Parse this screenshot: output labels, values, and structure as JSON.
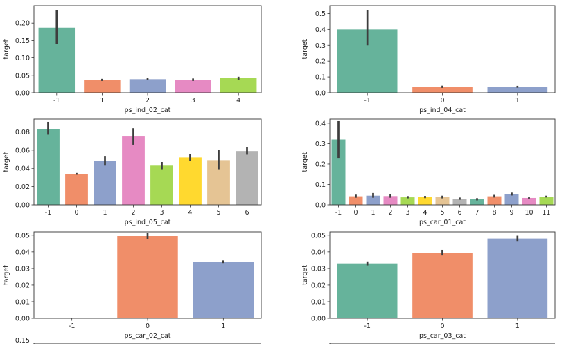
{
  "palette": [
    "#66b39b",
    "#f08e69",
    "#8da0cb",
    "#e68ac3",
    "#a6d954",
    "#ffd92f",
    "#e5c494",
    "#b3b3b3"
  ],
  "chart_data": [
    {
      "type": "bar",
      "categories": [
        "-1",
        "1",
        "2",
        "3",
        "4"
      ],
      "values": [
        0.187,
        0.037,
        0.039,
        0.037,
        0.042
      ],
      "errors": [
        [
          0.14,
          0.238
        ],
        [
          0.034,
          0.04
        ],
        [
          0.036,
          0.042
        ],
        [
          0.034,
          0.041
        ],
        [
          0.037,
          0.046
        ]
      ],
      "xlabel": "ps_ind_02_cat",
      "ylabel": "target",
      "ylim": [
        0,
        0.25
      ],
      "yticks": [
        0.0,
        0.05,
        0.1,
        0.15,
        0.2
      ],
      "ytick_labels": [
        "0.00",
        "0.05",
        "0.10",
        "0.15",
        "0.20"
      ]
    },
    {
      "type": "bar",
      "categories": [
        "-1",
        "0",
        "1"
      ],
      "values": [
        0.4,
        0.038,
        0.037
      ],
      "errors": [
        [
          0.3,
          0.52
        ],
        [
          0.031,
          0.045
        ],
        [
          0.032,
          0.044
        ]
      ],
      "xlabel": "ps_ind_04_cat",
      "ylabel": "target",
      "ylim": [
        0,
        0.55
      ],
      "yticks": [
        0.0,
        0.1,
        0.2,
        0.3,
        0.4,
        0.5
      ],
      "ytick_labels": [
        "0.0",
        "0.1",
        "0.2",
        "0.3",
        "0.4",
        "0.5"
      ]
    },
    {
      "type": "bar",
      "categories": [
        "-1",
        "0",
        "1",
        "2",
        "3",
        "4",
        "5",
        "6"
      ],
      "values": [
        0.083,
        0.034,
        0.048,
        0.075,
        0.043,
        0.052,
        0.049,
        0.059
      ],
      "errors": [
        [
          0.077,
          0.091
        ],
        [
          0.033,
          0.035
        ],
        [
          0.043,
          0.053
        ],
        [
          0.066,
          0.084
        ],
        [
          0.039,
          0.047
        ],
        [
          0.048,
          0.056
        ],
        [
          0.039,
          0.06
        ],
        [
          0.055,
          0.063
        ]
      ],
      "xlabel": "ps_ind_05_cat",
      "ylabel": "target",
      "ylim": [
        0,
        0.094
      ],
      "yticks": [
        0.0,
        0.02,
        0.04,
        0.06,
        0.08
      ],
      "ytick_labels": [
        "0.00",
        "0.02",
        "0.04",
        "0.06",
        "0.08"
      ]
    },
    {
      "type": "bar",
      "categories": [
        "-1",
        "0",
        "1",
        "2",
        "3",
        "4",
        "5",
        "6",
        "7",
        "8",
        "9",
        "10",
        "11"
      ],
      "values": [
        0.32,
        0.042,
        0.045,
        0.043,
        0.037,
        0.038,
        0.038,
        0.03,
        0.027,
        0.042,
        0.053,
        0.034,
        0.04
      ],
      "errors": [
        [
          0.23,
          0.41
        ],
        [
          0.035,
          0.05
        ],
        [
          0.035,
          0.058
        ],
        [
          0.035,
          0.052
        ],
        [
          0.032,
          0.043
        ],
        [
          0.033,
          0.044
        ],
        [
          0.032,
          0.045
        ],
        [
          0.025,
          0.036
        ],
        [
          0.022,
          0.033
        ],
        [
          0.036,
          0.049
        ],
        [
          0.046,
          0.06
        ],
        [
          0.029,
          0.04
        ],
        [
          0.036,
          0.045
        ]
      ],
      "xlabel": "ps_car_01_cat",
      "ylabel": "target",
      "ylim": [
        0,
        0.42
      ],
      "yticks": [
        0.0,
        0.1,
        0.2,
        0.3,
        0.4
      ],
      "ytick_labels": [
        "0.0",
        "0.1",
        "0.2",
        "0.3",
        "0.4"
      ]
    },
    {
      "type": "bar",
      "categories": [
        "-1",
        "0",
        "1"
      ],
      "values": [
        0.0,
        0.0495,
        0.034
      ],
      "errors": [
        null,
        [
          0.0478,
          0.0512
        ],
        [
          0.0332,
          0.0348
        ]
      ],
      "xlabel": "ps_car_02_cat",
      "ylabel": "target",
      "ylim": [
        0,
        0.052
      ],
      "yticks": [
        0.0,
        0.01,
        0.02,
        0.03,
        0.04,
        0.05
      ],
      "ytick_labels": [
        "0.00",
        "0.01",
        "0.02",
        "0.03",
        "0.04",
        "0.05"
      ],
      "color_offset": 0
    },
    {
      "type": "bar",
      "categories": [
        "-1",
        "0",
        "1"
      ],
      "values": [
        0.033,
        0.0395,
        0.048
      ],
      "errors": [
        [
          0.0318,
          0.0342
        ],
        [
          0.0378,
          0.0412
        ],
        [
          0.0465,
          0.0497
        ]
      ],
      "xlabel": "ps_car_03_cat",
      "ylabel": "target",
      "ylim": [
        0,
        0.052
      ],
      "yticks": [
        0.0,
        0.01,
        0.02,
        0.03,
        0.04,
        0.05
      ],
      "ytick_labels": [
        "0.00",
        "0.01",
        "0.02",
        "0.03",
        "0.04",
        "0.05"
      ]
    },
    {
      "type": "bar",
      "partial": true,
      "categories": [],
      "values": [],
      "yticks": [
        0.15
      ],
      "ytick_labels": [
        "0.15"
      ]
    }
  ]
}
